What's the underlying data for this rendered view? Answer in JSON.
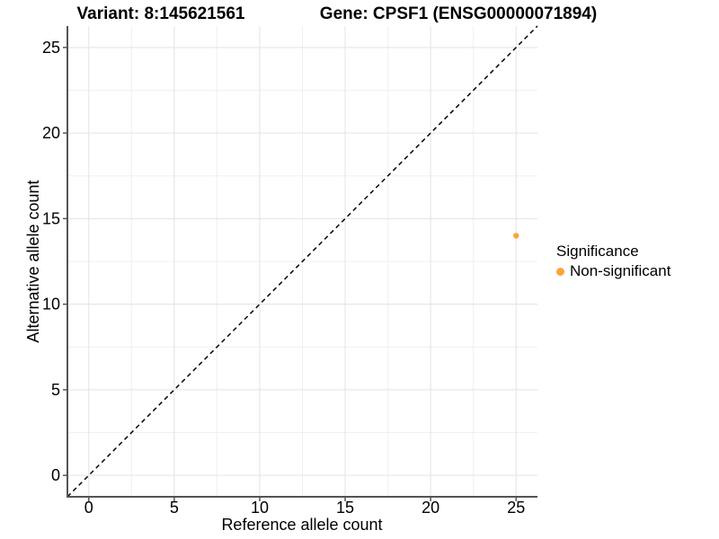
{
  "titles": {
    "left": "Variant: 8:145621561",
    "right": "Gene: CPSF1 (ENSG00000071894)"
  },
  "chart_data": {
    "type": "scatter",
    "xlabel": "Reference allele count",
    "ylabel": "Alternative allele count",
    "x_ticks": [
      0,
      5,
      10,
      15,
      20,
      25
    ],
    "y_ticks": [
      0,
      5,
      10,
      15,
      20,
      25
    ],
    "x_minor_ticks": [
      2.5,
      7.5,
      12.5,
      17.5,
      22.5
    ],
    "y_minor_ticks": [
      2.5,
      7.5,
      12.5,
      17.5,
      22.5
    ],
    "xlim": [
      -1.25,
      26.25
    ],
    "ylim": [
      -1.25,
      26.25
    ],
    "grid": {
      "major": true,
      "minor": true
    },
    "reference_line": {
      "style": "dashed",
      "slope": 1,
      "intercept": 0,
      "color": "#000000"
    },
    "series": [
      {
        "name": "Non-significant",
        "color": "#FAA43A",
        "points": [
          {
            "x": 25,
            "y": 14
          }
        ]
      }
    ],
    "legend": {
      "title": "Significance",
      "position": "right",
      "items": [
        {
          "label": "Non-significant",
          "color": "#FAA43A"
        }
      ]
    },
    "style_colors": {
      "axis_line": "#545454",
      "grid_major": "#e3e3e3",
      "grid_minor": "#f0f0f0",
      "tick_text": "#000000"
    }
  }
}
